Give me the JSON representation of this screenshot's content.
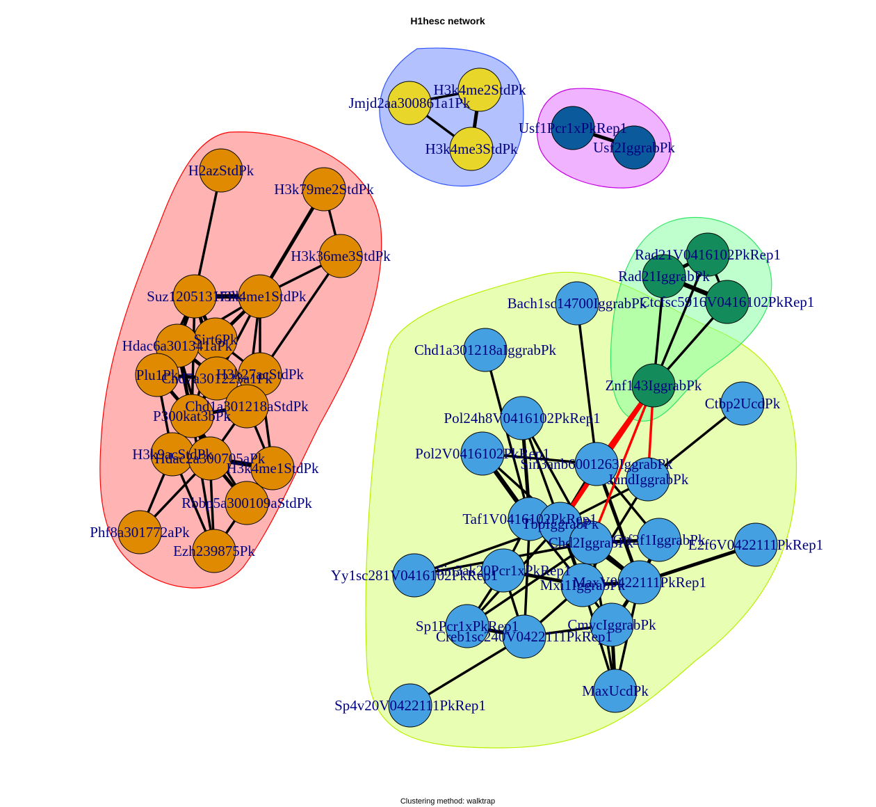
{
  "title": "H1hesc network",
  "subtitle": "Clustering method: walktrap",
  "clusters": [
    {
      "id": "c1",
      "fill": "#ff8080",
      "stroke": "#ff0000",
      "opacity": 0.6
    },
    {
      "id": "c2",
      "fill": "#8099ff",
      "stroke": "#3355ff",
      "opacity": 0.6
    },
    {
      "id": "c3",
      "fill": "#e680ff",
      "stroke": "#c400e6",
      "opacity": 0.6
    },
    {
      "id": "c4",
      "fill": "#d9ff80",
      "stroke": "#b8f000",
      "opacity": 0.6
    },
    {
      "id": "c5",
      "fill": "#80ff9e",
      "stroke": "#33e666",
      "opacity": 0.5
    }
  ],
  "nodes": [
    {
      "id": "H2azStdPk",
      "label": "H2azStdPk",
      "cluster": "c1",
      "color": "#df8a00"
    },
    {
      "id": "H3k79me2StdPk",
      "label": "H3k79me2StdPk",
      "cluster": "c1",
      "color": "#df8a00"
    },
    {
      "id": "H3k36me3StdPk",
      "label": "H3k36me3StdPk",
      "cluster": "c1",
      "color": "#df8a00"
    },
    {
      "id": "Suz12051317Pk",
      "label": "Suz12051317Pk",
      "cluster": "c1",
      "color": "#df8a00"
    },
    {
      "id": "H3k4me1StdPk_a",
      "label": "H3k4me1StdPk",
      "cluster": "c1",
      "color": "#df8a00"
    },
    {
      "id": "Sirt6Pk",
      "label": "Sirt6Pk",
      "cluster": "c1",
      "color": "#df8a00"
    },
    {
      "id": "Hdac6a301341aPk",
      "label": "Hdac6a301341aPk",
      "cluster": "c1",
      "color": "#df8a00"
    },
    {
      "id": "Plu1Pk",
      "label": "Plu1Pk",
      "cluster": "c1",
      "color": "#df8a00"
    },
    {
      "id": "Chd7a301223a1Pk",
      "label": "Chd7a301223a1Pk",
      "cluster": "c1",
      "color": "#df8a00"
    },
    {
      "id": "H3k27acStdPk",
      "label": "H3k27acStdPk",
      "cluster": "c1",
      "color": "#df8a00"
    },
    {
      "id": "Chd1a301218aStdPk",
      "label": "Chd1a301218aStdPk",
      "cluster": "c1",
      "color": "#df8a00"
    },
    {
      "id": "P300kat3bPk",
      "label": "P300kat3bPk",
      "cluster": "c1",
      "color": "#df8a00"
    },
    {
      "id": "H3k9acStdPk",
      "label": "H3k9acStdPk",
      "cluster": "c1",
      "color": "#df8a00"
    },
    {
      "id": "Hdac2a300705aPk",
      "label": "Hdac2a300705aPk",
      "cluster": "c1",
      "color": "#df8a00"
    },
    {
      "id": "H3k4me1StdPk_b",
      "label": "H3k4me1StdPk",
      "cluster": "c1",
      "color": "#df8a00"
    },
    {
      "id": "Rbbp5a300109aStdPk",
      "label": "Rbbp5a300109aStdPk",
      "cluster": "c1",
      "color": "#df8a00"
    },
    {
      "id": "Phf8a301772aPk",
      "label": "Phf8a301772aPk",
      "cluster": "c1",
      "color": "#df8a00"
    },
    {
      "id": "Ezh239875Pk",
      "label": "Ezh239875Pk",
      "cluster": "c1",
      "color": "#df8a00"
    },
    {
      "id": "Jmjd2aa300861a1Pk",
      "label": "Jmjd2aa300861a1Pk",
      "cluster": "c2",
      "color": "#e8d62b"
    },
    {
      "id": "H3k4me2StdPk",
      "label": "H3k4me2StdPk",
      "cluster": "c2",
      "color": "#e8d62b"
    },
    {
      "id": "H3k4me3StdPk",
      "label": "H3k4me3StdPk",
      "cluster": "c2",
      "color": "#e8d62b"
    },
    {
      "id": "Usf1Pcr1xPkRep1",
      "label": "Usf1Pcr1xPkRep1",
      "cluster": "c3",
      "color": "#0b5b9c"
    },
    {
      "id": "Usf2IggrabPk",
      "label": "Usf2IggrabPk",
      "cluster": "c3",
      "color": "#0b5b9c"
    },
    {
      "id": "Rad21V0416102PkRep1",
      "label": "Rad21V0416102PkRep1",
      "cluster": "c5",
      "color": "#138b5b"
    },
    {
      "id": "Rad21IggrabPk",
      "label": "Rad21IggrabPk",
      "cluster": "c5",
      "color": "#138b5b"
    },
    {
      "id": "Ctcfsc5916V0416102PkRep1",
      "label": "Ctcfsc5916V0416102PkRep1",
      "cluster": "c5",
      "color": "#138b5b"
    },
    {
      "id": "Znf143IggrabPk",
      "label": "Znf143IggrabPk",
      "cluster": "c5",
      "color": "#138b5b"
    },
    {
      "id": "Bach1sc14700IggrabPk",
      "label": "Bach1sc14700IggrabPk",
      "cluster": "c4",
      "color": "#44a0e0"
    },
    {
      "id": "Chd1a301218aIggrabPk",
      "label": "Chd1a301218aIggrabPk",
      "cluster": "c4",
      "color": "#44a0e0"
    },
    {
      "id": "Ctbp2UcdPk",
      "label": "Ctbp2UcdPk",
      "cluster": "c4",
      "color": "#44a0e0"
    },
    {
      "id": "Pol24h8V0416102PkRep1",
      "label": "Pol24h8V0416102PkRep1",
      "cluster": "c4",
      "color": "#44a0e0"
    },
    {
      "id": "Pol2V0416102PkRep1",
      "label": "Pol2V0416102PkRep1",
      "cluster": "c4",
      "color": "#44a0e0"
    },
    {
      "id": "Sin3anb6001263IggrabPk",
      "label": "Sin3anb6001263IggrabPk",
      "cluster": "c4",
      "color": "#44a0e0"
    },
    {
      "id": "JundIggrabPk",
      "label": "JundIggrabPk",
      "cluster": "c4",
      "color": "#44a0e0"
    },
    {
      "id": "Taf1V0416102PkRep1",
      "label": "Taf1V0416102PkRep1",
      "cluster": "c4",
      "color": "#44a0e0"
    },
    {
      "id": "TbpIggrabPk",
      "label": "TbpIggrabPk",
      "cluster": "c4",
      "color": "#44a0e0"
    },
    {
      "id": "Chd2IggrabPk",
      "label": "Chd2IggrabPk",
      "cluster": "c4",
      "color": "#44a0e0"
    },
    {
      "id": "GtfIf1IggrabPk",
      "label": "Gtf2f1IggrabPk",
      "cluster": "c4",
      "color": "#44a0e0"
    },
    {
      "id": "E2f6V0422111PkRep1",
      "label": "E2f6V0422111PkRep1",
      "cluster": "c4",
      "color": "#44a0e0"
    },
    {
      "id": "Yy1sc281V0416102PkRep1",
      "label": "Yy1sc281V0416102PkRep1",
      "cluster": "c4",
      "color": "#44a0e0"
    },
    {
      "id": "Sin3ak20Pcr1xPkRep1",
      "label": "Sin3ak20Pcr1xPkRep1",
      "cluster": "c4",
      "color": "#44a0e0"
    },
    {
      "id": "Mxi1IggrabPk",
      "label": "Mxi1IggrabPk",
      "cluster": "c4",
      "color": "#44a0e0"
    },
    {
      "id": "MaxV0422111PkRep1",
      "label": "MaxV0422111PkRep1",
      "cluster": "c4",
      "color": "#44a0e0"
    },
    {
      "id": "Sp1Pcr1xPkRep1",
      "label": "Sp1Pcr1xPkRep1",
      "cluster": "c4",
      "color": "#44a0e0"
    },
    {
      "id": "Creb1sc240V0422111PkRep1",
      "label": "Creb1sc240V0422111PkRep1",
      "cluster": "c4",
      "color": "#44a0e0"
    },
    {
      "id": "CmycIggrabPk",
      "label": "CmycIggrabPk",
      "cluster": "c4",
      "color": "#44a0e0"
    },
    {
      "id": "MaxUcdPk",
      "label": "MaxUcdPk",
      "cluster": "c4",
      "color": "#44a0e0"
    },
    {
      "id": "Sp4v20V0422111PkRep1",
      "label": "Sp4v20V0422111PkRep1",
      "cluster": "c4",
      "color": "#44a0e0"
    }
  ],
  "edges": [
    [
      "H2azStdPk",
      "Suz12051317Pk",
      1
    ],
    [
      "H3k79me2StdPk",
      "H3k36me3StdPk",
      1
    ],
    [
      "H3k79me2StdPk",
      "H3k4me1StdPk_a",
      2
    ],
    [
      "H3k36me3StdPk",
      "H3k4me1StdPk_a",
      1
    ],
    [
      "H3k36me3StdPk",
      "H3k27acStdPk",
      1
    ],
    [
      "Suz12051317Pk",
      "H3k4me1StdPk_a",
      3
    ],
    [
      "Suz12051317Pk",
      "Sirt6Pk",
      2
    ],
    [
      "Suz12051317Pk",
      "Hdac6a301341aPk",
      2
    ],
    [
      "Suz12051317Pk",
      "Chd7a301223a1Pk",
      2
    ],
    [
      "Suz12051317Pk",
      "Plu1Pk",
      1
    ],
    [
      "H3k4me1StdPk_a",
      "Sirt6Pk",
      2
    ],
    [
      "H3k4me1StdPk_a",
      "H3k27acStdPk",
      1
    ],
    [
      "H3k4me1StdPk_a",
      "Chd1a301218aStdPk",
      1
    ],
    [
      "H3k4me1StdPk_a",
      "Hdac6a301341aPk",
      1
    ],
    [
      "H3k4me1StdPk_a",
      "Chd7a301223a1Pk",
      1
    ],
    [
      "Sirt6Pk",
      "Hdac6a301341aPk",
      2
    ],
    [
      "Sirt6Pk",
      "Chd7a301223a1Pk",
      2
    ],
    [
      "Sirt6Pk",
      "P300kat3bPk",
      1
    ],
    [
      "Hdac6a301341aPk",
      "Plu1Pk",
      2
    ],
    [
      "Hdac6a301341aPk",
      "Chd7a301223a1Pk",
      2
    ],
    [
      "Hdac6a301341aPk",
      "P300kat3bPk",
      2
    ],
    [
      "Hdac6a301341aPk",
      "Hdac2a300705aPk",
      1
    ],
    [
      "Plu1Pk",
      "Chd7a301223a1Pk",
      2
    ],
    [
      "Plu1Pk",
      "P300kat3bPk",
      2
    ],
    [
      "Plu1Pk",
      "H3k9acStdPk",
      1
    ],
    [
      "Chd7a301223a1Pk",
      "H3k27acStdPk",
      1
    ],
    [
      "Chd7a301223a1Pk",
      "Chd1a301218aStdPk",
      2
    ],
    [
      "Chd7a301223a1Pk",
      "P300kat3bPk",
      2
    ],
    [
      "H3k27acStdPk",
      "Chd1a301218aStdPk",
      1
    ],
    [
      "H3k27acStdPk",
      "H3k4me1StdPk_b",
      1
    ],
    [
      "Chd1a301218aStdPk",
      "P300kat3bPk",
      2
    ],
    [
      "Chd1a301218aStdPk",
      "Hdac2a300705aPk",
      1
    ],
    [
      "Chd1a301218aStdPk",
      "H3k4me1StdPk_b",
      1
    ],
    [
      "P300kat3bPk",
      "H3k9acStdPk",
      2
    ],
    [
      "P300kat3bPk",
      "Hdac2a300705aPk",
      3
    ],
    [
      "P300kat3bPk",
      "Rbbp5a300109aStdPk",
      1
    ],
    [
      "P300kat3bPk",
      "Ezh239875Pk",
      1
    ],
    [
      "H3k9acStdPk",
      "Hdac2a300705aPk",
      2
    ],
    [
      "H3k9acStdPk",
      "Phf8a301772aPk",
      1
    ],
    [
      "H3k9acStdPk",
      "Ezh239875Pk",
      1
    ],
    [
      "Hdac2a300705aPk",
      "H3k4me1StdPk_b",
      3
    ],
    [
      "Hdac2a300705aPk",
      "Rbbp5a300109aStdPk",
      2
    ],
    [
      "Hdac2a300705aPk",
      "Ezh239875Pk",
      1
    ],
    [
      "Hdac2a300705aPk",
      "Phf8a301772aPk",
      1
    ],
    [
      "H3k4me1StdPk_b",
      "Rbbp5a300109aStdPk",
      1
    ],
    [
      "Rbbp5a300109aStdPk",
      "Ezh239875Pk",
      1
    ],
    [
      "Sirt6Pk",
      "H3k27acStdPk",
      1
    ],
    [
      "Suz12051317Pk",
      "P300kat3bPk",
      1
    ],
    [
      "Jmjd2aa300861a1Pk",
      "H3k4me2StdPk",
      1
    ],
    [
      "Jmjd2aa300861a1Pk",
      "H3k4me3StdPk",
      1
    ],
    [
      "H3k4me2StdPk",
      "H3k4me3StdPk",
      2
    ],
    [
      "Usf1Pcr1xPkRep1",
      "Usf2IggrabPk",
      2
    ],
    [
      "Rad21V0416102PkRep1",
      "Rad21IggrabPk",
      2
    ],
    [
      "Rad21V0416102PkRep1",
      "Ctcfsc5916V0416102PkRep1",
      1
    ],
    [
      "Rad21IggrabPk",
      "Ctcfsc5916V0416102PkRep1",
      3
    ],
    [
      "Rad21IggrabPk",
      "Znf143IggrabPk",
      1
    ],
    [
      "Ctcfsc5916V0416102PkRep1",
      "Znf143IggrabPk",
      1
    ],
    [
      "Rad21V0416102PkRep1",
      "Znf143IggrabPk",
      1
    ],
    [
      "Bach1sc14700IggrabPk",
      "Sin3anb6001263IggrabPk",
      1
    ],
    [
      "Chd1a301218aIggrabPk",
      "Taf1V0416102PkRep1",
      1
    ],
    [
      "Ctbp2UcdPk",
      "JundIggrabPk",
      1
    ],
    [
      "Pol24h8V0416102PkRep1",
      "Taf1V0416102PkRep1",
      2
    ],
    [
      "Pol24h8V0416102PkRep1",
      "TbpIggrabPk",
      1
    ],
    [
      "Pol24h8V0416102PkRep1",
      "Chd2IggrabPk",
      1
    ],
    [
      "Pol2V0416102PkRep1",
      "Taf1V0416102PkRep1",
      3
    ],
    [
      "Pol2V0416102PkRep1",
      "Sin3anb6001263IggrabPk",
      1
    ],
    [
      "Pol2V0416102PkRep1",
      "TbpIggrabPk",
      1
    ],
    [
      "Sin3anb6001263IggrabPk",
      "TbpIggrabPk",
      2
    ],
    [
      "Sin3anb6001263IggrabPk",
      "MaxV0422111PkRep1",
      2
    ],
    [
      "Sin3anb6001263IggrabPk",
      "GtfIf1IggrabPk",
      1
    ],
    [
      "JundIggrabPk",
      "TbpIggrabPk",
      1
    ],
    [
      "JundIggrabPk",
      "Mxi1IggrabPk",
      1
    ],
    [
      "Taf1V0416102PkRep1",
      "TbpIggrabPk",
      3
    ],
    [
      "Taf1V0416102PkRep1",
      "Chd2IggrabPk",
      2
    ],
    [
      "Taf1V0416102PkRep1",
      "Sin3ak20Pcr1xPkRep1",
      1
    ],
    [
      "Taf1V0416102PkRep1",
      "Creb1sc240V0422111PkRep1",
      1
    ],
    [
      "Taf1V0416102PkRep1",
      "Mxi1IggrabPk",
      1
    ],
    [
      "TbpIggrabPk",
      "Chd2IggrabPk",
      2
    ],
    [
      "TbpIggrabPk",
      "Mxi1IggrabPk",
      2
    ],
    [
      "TbpIggrabPk",
      "Sp1Pcr1xPkRep1",
      1
    ],
    [
      "Chd2IggrabPk",
      "GtfIf1IggrabPk",
      2
    ],
    [
      "Chd2IggrabPk",
      "MaxV0422111PkRep1",
      3
    ],
    [
      "Chd2IggrabPk",
      "Mxi1IggrabPk",
      2
    ],
    [
      "Chd2IggrabPk",
      "Yy1sc281V0416102PkRep1",
      1
    ],
    [
      "GtfIf1IggrabPk",
      "MaxV0422111PkRep1",
      2
    ],
    [
      "E2f6V0422111PkRep1",
      "MaxV0422111PkRep1",
      2
    ],
    [
      "Sin3ak20Pcr1xPkRep1",
      "Mxi1IggrabPk",
      2
    ],
    [
      "Sin3ak20Pcr1xPkRep1",
      "Sp1Pcr1xPkRep1",
      1
    ],
    [
      "Sin3ak20Pcr1xPkRep1",
      "Creb1sc240V0422111PkRep1",
      1
    ],
    [
      "Mxi1IggrabPk",
      "MaxV0422111PkRep1",
      2
    ],
    [
      "Mxi1IggrabPk",
      "CmycIggrabPk",
      1
    ],
    [
      "Mxi1IggrabPk",
      "Creb1sc240V0422111PkRep1",
      1
    ],
    [
      "MaxV0422111PkRep1",
      "CmycIggrabPk",
      2
    ],
    [
      "MaxV0422111PkRep1",
      "MaxUcdPk",
      1
    ],
    [
      "CmycIggrabPk",
      "MaxUcdPk",
      2
    ],
    [
      "Sp1Pcr1xPkRep1",
      "Creb1sc240V0422111PkRep1",
      2
    ],
    [
      "Creb1sc240V0422111PkRep1",
      "Sp4v20V0422111PkRep1",
      1
    ],
    [
      "Creb1sc240V0422111PkRep1",
      "CmycIggrabPk",
      1
    ],
    [
      "Sp1Pcr1xPkRep1",
      "Chd2IggrabPk",
      1
    ],
    [
      "Mxi1IggrabPk",
      "MaxUcdPk",
      1
    ],
    [
      "Chd2IggrabPk",
      "MaxUcdPk",
      1
    ],
    [
      "TbpIggrabPk",
      "MaxV0422111PkRep1",
      1
    ],
    [
      "Yy1sc281V0416102PkRep1",
      "TbpIggrabPk",
      1
    ]
  ],
  "bridge_edges": [
    [
      "Znf143IggrabPk",
      "TbpIggrabPk",
      3
    ],
    [
      "Znf143IggrabPk",
      "Sin3anb6001263IggrabPk",
      2
    ],
    [
      "Znf143IggrabPk",
      "Chd2IggrabPk",
      1
    ],
    [
      "Znf143IggrabPk",
      "JundIggrabPk",
      1
    ]
  ],
  "edge_color": "#000000",
  "bridge_color": "#ff0000"
}
